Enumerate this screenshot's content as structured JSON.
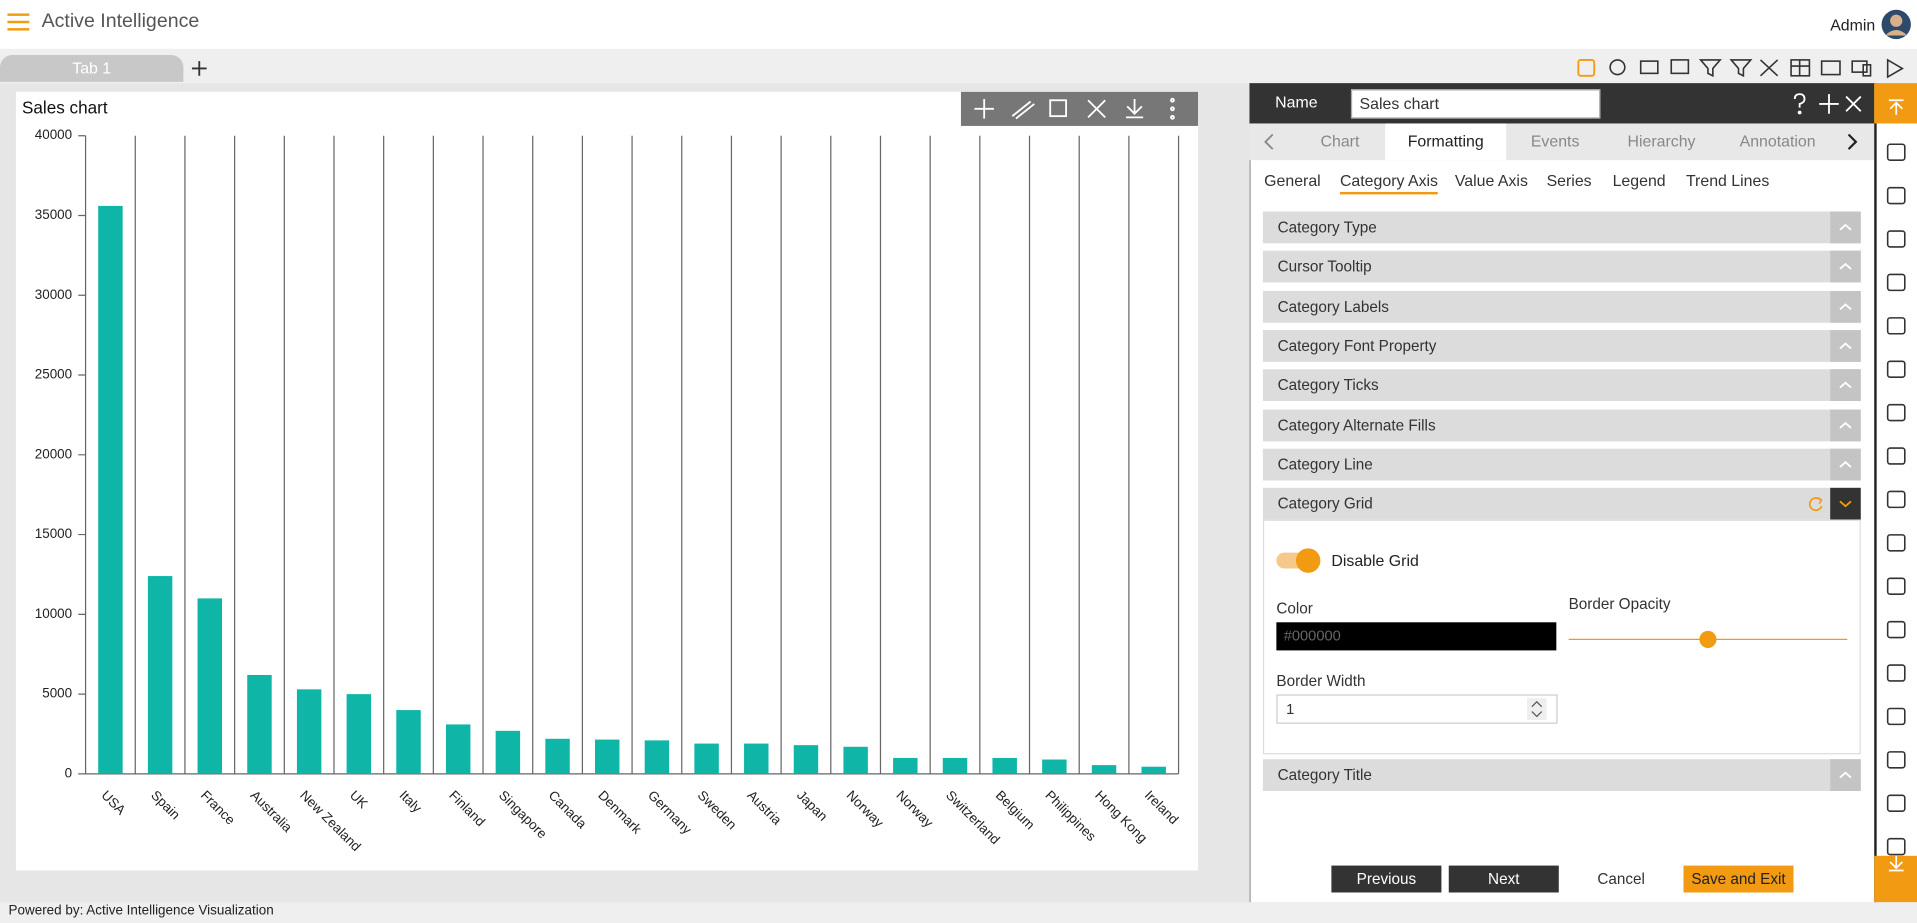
{
  "header": {
    "app_title": "Active Intelligence",
    "user": "Admin"
  },
  "tabs": [
    "Tab 1"
  ],
  "chart_data": {
    "type": "bar",
    "title": "Sales chart",
    "categories": [
      "USA",
      "Spain",
      "France",
      "Australia",
      "New Zealand",
      "UK",
      "Italy",
      "Finland",
      "Singapore",
      "Canada",
      "Denmark",
      "Germany",
      "Sweden",
      "Austria",
      "Japan",
      "Norway",
      "Norway",
      "Switzerland",
      "Belgium",
      "Philippines",
      "Hong Kong",
      "Ireland"
    ],
    "values": [
      35600,
      12400,
      11000,
      6200,
      5300,
      5000,
      4000,
      3100,
      2700,
      2200,
      2150,
      2100,
      1900,
      1900,
      1800,
      1700,
      1000,
      1000,
      1000,
      900,
      550,
      450
    ],
    "color": "#0fb5a7",
    "ylim": [
      0,
      40000
    ],
    "yticks": [
      0,
      5000,
      10000,
      15000,
      20000,
      25000,
      30000,
      35000,
      40000
    ],
    "grid": true
  },
  "panel": {
    "name_label": "Name",
    "name_value": "Sales chart",
    "tabs": [
      "Chart",
      "Formatting",
      "Events",
      "Hierarchy",
      "Annotation"
    ],
    "subtabs": [
      "General",
      "Category Axis",
      "Value Axis",
      "Series",
      "Legend",
      "Trend Lines"
    ],
    "sections": [
      "Category Type",
      "Cursor Tooltip",
      "Category Labels",
      "Category Font Property",
      "Category Ticks",
      "Category Alternate Fills",
      "Category Line"
    ],
    "open_section": {
      "title": "Category Grid",
      "toggle_label": "Disable Grid",
      "color_label": "Color",
      "color_value": "#000000",
      "opacity_label": "Border Opacity",
      "opacity_range": [
        0,
        1
      ],
      "opacity_value": 0.5,
      "width_label": "Border Width",
      "width_value": 1
    },
    "sections_after": [
      "Category Title"
    ],
    "buttons": [
      "Previous",
      "Next",
      "Cancel",
      "Save and Exit"
    ]
  },
  "footer": "Powered by: Active Intelligence Visualization"
}
